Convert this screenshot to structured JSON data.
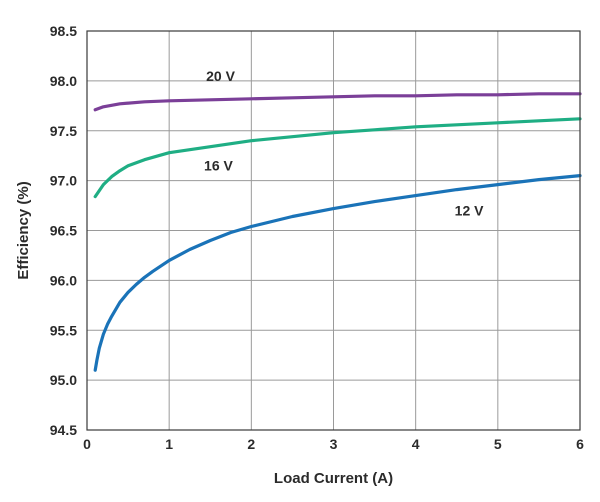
{
  "chart_data": {
    "type": "line",
    "xlabel": "Load Current (A)",
    "ylabel": "Efficiency (%)",
    "xlim": [
      0,
      6
    ],
    "ylim": [
      94.5,
      98.5
    ],
    "xticks": [
      "0",
      "1",
      "2",
      "3",
      "4",
      "5",
      "6"
    ],
    "yticks": [
      "94.5",
      "95.0",
      "95.5",
      "96.0",
      "96.5",
      "97.0",
      "97.5",
      "98.0",
      "98.5"
    ],
    "grid": true,
    "series": [
      {
        "name": "20 V",
        "color": "#7b3f98",
        "x": [
          0.1,
          0.2,
          0.4,
          0.7,
          1.0,
          1.5,
          2.0,
          2.5,
          3.0,
          3.5,
          4.0,
          4.5,
          5.0,
          5.5,
          6.0
        ],
        "y": [
          97.71,
          97.74,
          97.77,
          97.79,
          97.8,
          97.81,
          97.82,
          97.83,
          97.84,
          97.85,
          97.85,
          97.86,
          97.86,
          97.87,
          97.87
        ]
      },
      {
        "name": "16 V",
        "color": "#1fae84",
        "x": [
          0.1,
          0.15,
          0.2,
          0.3,
          0.4,
          0.5,
          0.7,
          1.0,
          1.5,
          2.0,
          2.5,
          3.0,
          3.5,
          4.0,
          4.5,
          5.0,
          5.5,
          6.0
        ],
        "y": [
          96.84,
          96.9,
          96.96,
          97.04,
          97.1,
          97.15,
          97.21,
          97.28,
          97.34,
          97.4,
          97.44,
          97.48,
          97.51,
          97.54,
          97.56,
          97.58,
          97.6,
          97.62
        ]
      },
      {
        "name": "12 V",
        "color": "#1a73b8",
        "x": [
          0.1,
          0.12,
          0.15,
          0.2,
          0.25,
          0.3,
          0.4,
          0.5,
          0.6,
          0.7,
          0.8,
          1.0,
          1.25,
          1.5,
          1.75,
          2.0,
          2.5,
          3.0,
          3.5,
          4.0,
          4.5,
          5.0,
          5.5,
          6.0
        ],
        "y": [
          95.1,
          95.2,
          95.32,
          95.46,
          95.56,
          95.64,
          95.78,
          95.88,
          95.96,
          96.03,
          96.09,
          96.2,
          96.31,
          96.4,
          96.48,
          96.54,
          96.64,
          96.72,
          96.79,
          96.85,
          96.91,
          96.96,
          97.01,
          97.05
        ]
      }
    ]
  }
}
